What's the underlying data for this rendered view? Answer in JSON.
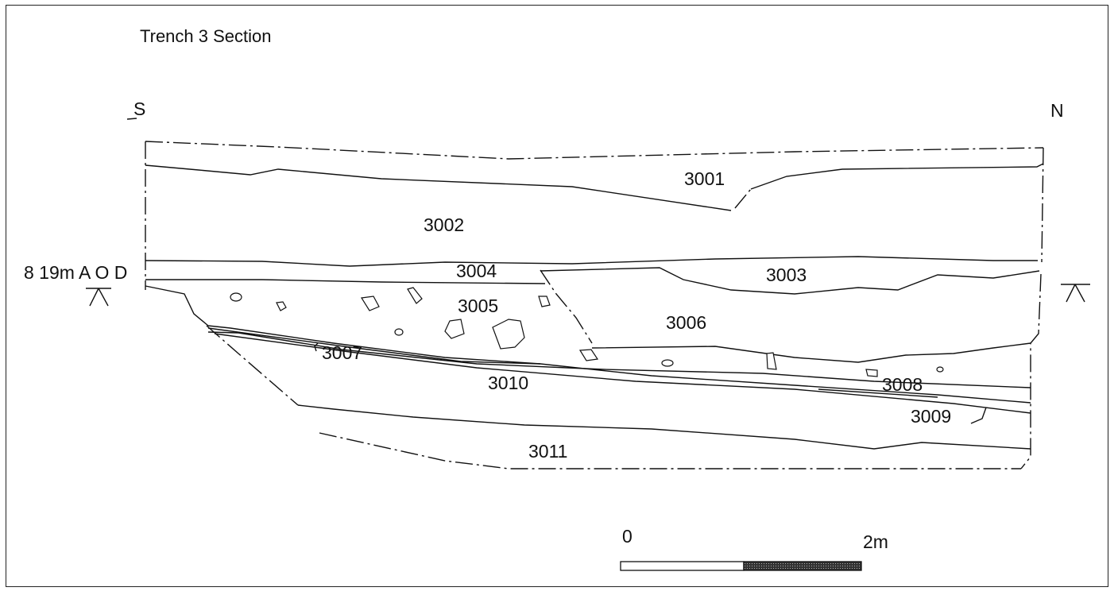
{
  "title": "Trench 3 Section",
  "orientation": {
    "left": "S",
    "right": "N"
  },
  "datum": "8 19m A O D",
  "contexts": [
    "3001",
    "3002",
    "3003",
    "3004",
    "3005",
    "3006",
    "3007",
    "3008",
    "3009",
    "3010",
    "3011"
  ],
  "scale_bar": {
    "start_label": "0",
    "end_label": "2m"
  },
  "colors": {
    "line": "#111111",
    "scale_fill": "#222222"
  }
}
